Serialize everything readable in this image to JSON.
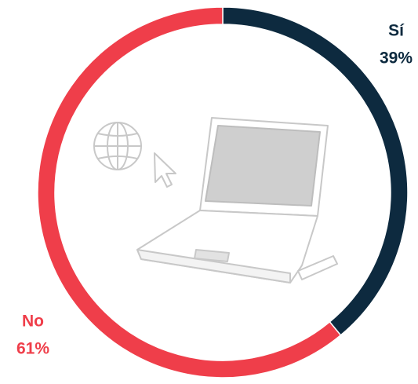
{
  "chart_data": {
    "type": "pie",
    "donut": true,
    "categories": [
      "Sí",
      "No"
    ],
    "values": [
      39,
      61
    ],
    "value_labels": [
      "39%",
      "61%"
    ],
    "colors": [
      "#0d2a3f",
      "#ef3e4a"
    ]
  }
}
